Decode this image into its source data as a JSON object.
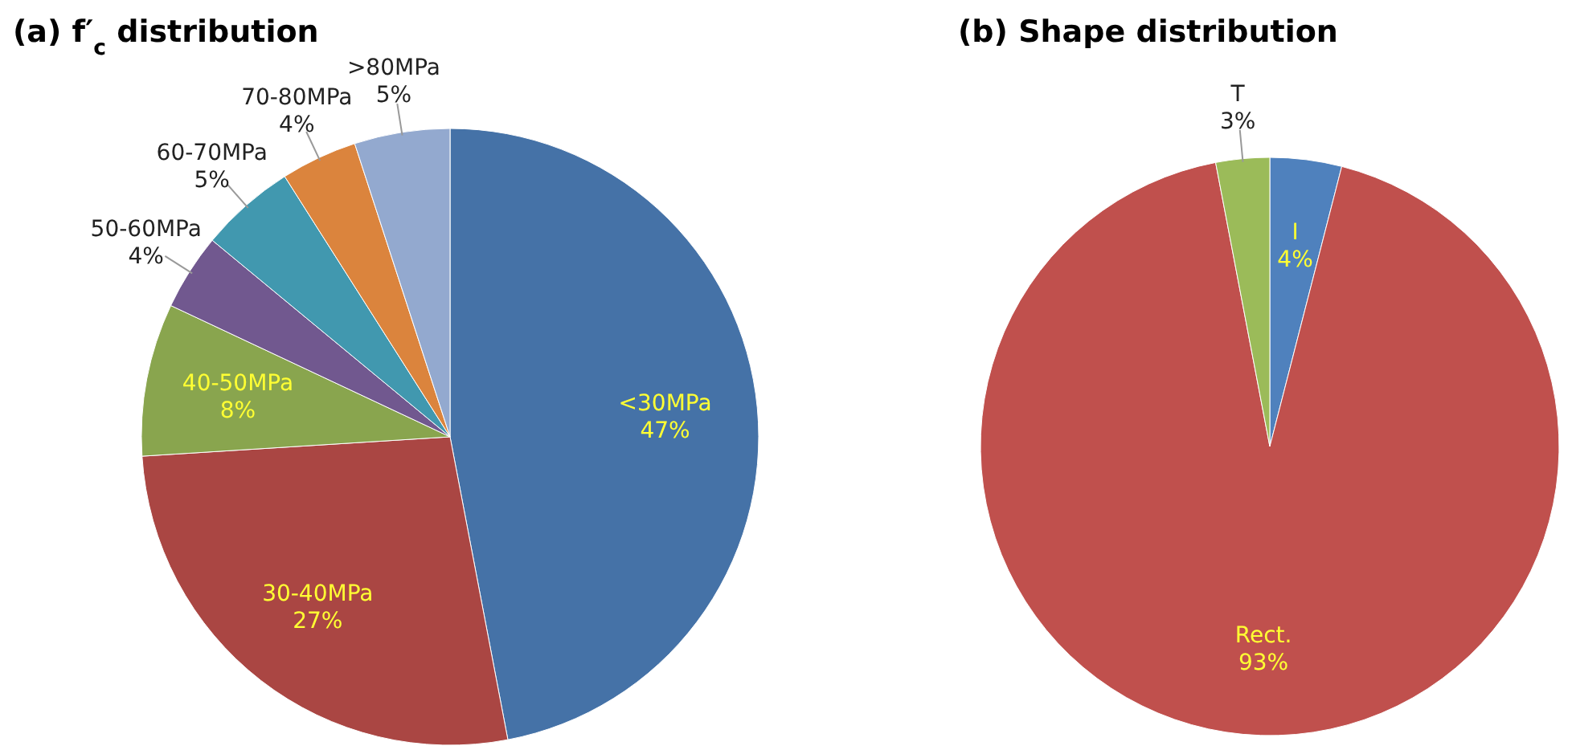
{
  "chart_data": [
    {
      "type": "pie",
      "title": "(a) f′$_{c}$ distribution",
      "categories": [
        "<30MPa",
        "30-40MPa",
        "40-50MPa",
        "50-60MPa",
        "60-70MPa",
        "70-80MPa",
        ">80MPa"
      ],
      "values": [
        47,
        27,
        8,
        4,
        5,
        4,
        5
      ],
      "colors": [
        "#4572a7",
        "#aa4643",
        "#89a54e",
        "#71588f",
        "#4198af",
        "#db843d",
        "#93a9cf"
      ],
      "value_labels": [
        "47%",
        "27%",
        "8%",
        "4%",
        "5%",
        "4%",
        "5%"
      ],
      "legend": false
    },
    {
      "type": "pie",
      "title": "(b) Shape distribution",
      "categories": [
        "I",
        "Rect.",
        "T"
      ],
      "values": [
        4,
        93,
        3
      ],
      "colors": [
        "#4f81bd",
        "#c0504d",
        "#9bbb59"
      ],
      "value_labels": [
        "4%",
        "93%",
        "3%"
      ],
      "legend": false
    }
  ]
}
